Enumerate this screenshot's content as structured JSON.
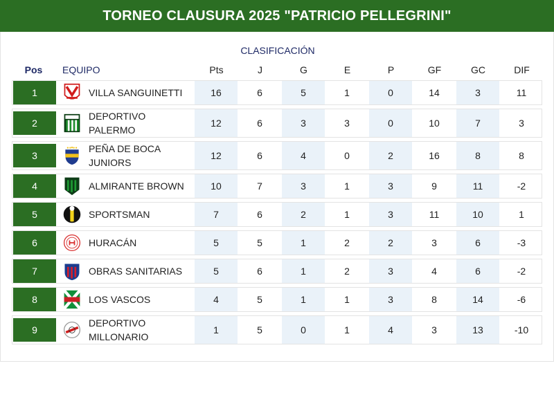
{
  "header": {
    "title": "TORNEO CLAUSURA 2025 \"PATRICIO PELLEGRINI\""
  },
  "table": {
    "subtitle": "CLASIFICACIÓN",
    "columns": {
      "pos": "Pos",
      "team": "EQUIPO",
      "pts": "Pts",
      "j": "J",
      "g": "G",
      "e": "E",
      "p": "P",
      "gf": "GF",
      "gc": "GC",
      "dif": "DIF"
    },
    "rows": [
      {
        "pos": "1",
        "team": "VILLA SANGUINETTI",
        "pts": "16",
        "j": "6",
        "g": "5",
        "e": "1",
        "p": "0",
        "gf": "14",
        "gc": "3",
        "dif": "11",
        "crest": "villa-sanguinetti-crest-icon"
      },
      {
        "pos": "2",
        "team": "DEPORTIVO PALERMO",
        "pts": "12",
        "j": "6",
        "g": "3",
        "e": "3",
        "p": "0",
        "gf": "10",
        "gc": "7",
        "dif": "3",
        "crest": "deportivo-palermo-crest-icon"
      },
      {
        "pos": "3",
        "team": "PEÑA DE BOCA JUNIORS",
        "pts": "12",
        "j": "6",
        "g": "4",
        "e": "0",
        "p": "2",
        "gf": "16",
        "gc": "8",
        "dif": "8",
        "crest": "boca-crest-icon"
      },
      {
        "pos": "4",
        "team": "ALMIRANTE BROWN",
        "pts": "10",
        "j": "7",
        "g": "3",
        "e": "1",
        "p": "3",
        "gf": "9",
        "gc": "11",
        "dif": "-2",
        "crest": "almirante-brown-crest-icon"
      },
      {
        "pos": "5",
        "team": "SPORTSMAN",
        "pts": "7",
        "j": "6",
        "g": "2",
        "e": "1",
        "p": "3",
        "gf": "11",
        "gc": "10",
        "dif": "1",
        "crest": "sportsman-crest-icon"
      },
      {
        "pos": "6",
        "team": "HURACÁN",
        "pts": "5",
        "j": "5",
        "g": "1",
        "e": "2",
        "p": "2",
        "gf": "3",
        "gc": "6",
        "dif": "-3",
        "crest": "huracan-crest-icon"
      },
      {
        "pos": "7",
        "team": "OBRAS SANITARIAS",
        "pts": "5",
        "j": "6",
        "g": "1",
        "e": "2",
        "p": "3",
        "gf": "4",
        "gc": "6",
        "dif": "-2",
        "crest": "obras-sanitarias-crest-icon"
      },
      {
        "pos": "8",
        "team": "LOS VASCOS",
        "pts": "4",
        "j": "5",
        "g": "1",
        "e": "1",
        "p": "3",
        "gf": "8",
        "gc": "14",
        "dif": "-6",
        "crest": "los-vascos-crest-icon"
      },
      {
        "pos": "9",
        "team": "DEPORTIVO MILLONARIO",
        "pts": "1",
        "j": "5",
        "g": "0",
        "e": "1",
        "p": "4",
        "gf": "3",
        "gc": "13",
        "dif": "-10",
        "crest": "deportivo-millonario-crest-icon"
      }
    ]
  },
  "colors": {
    "header_bg": "#2b6e23",
    "pos_bg": "#2b6e23",
    "accent_text": "#1f2a66",
    "shade": "#eaf2f9"
  }
}
